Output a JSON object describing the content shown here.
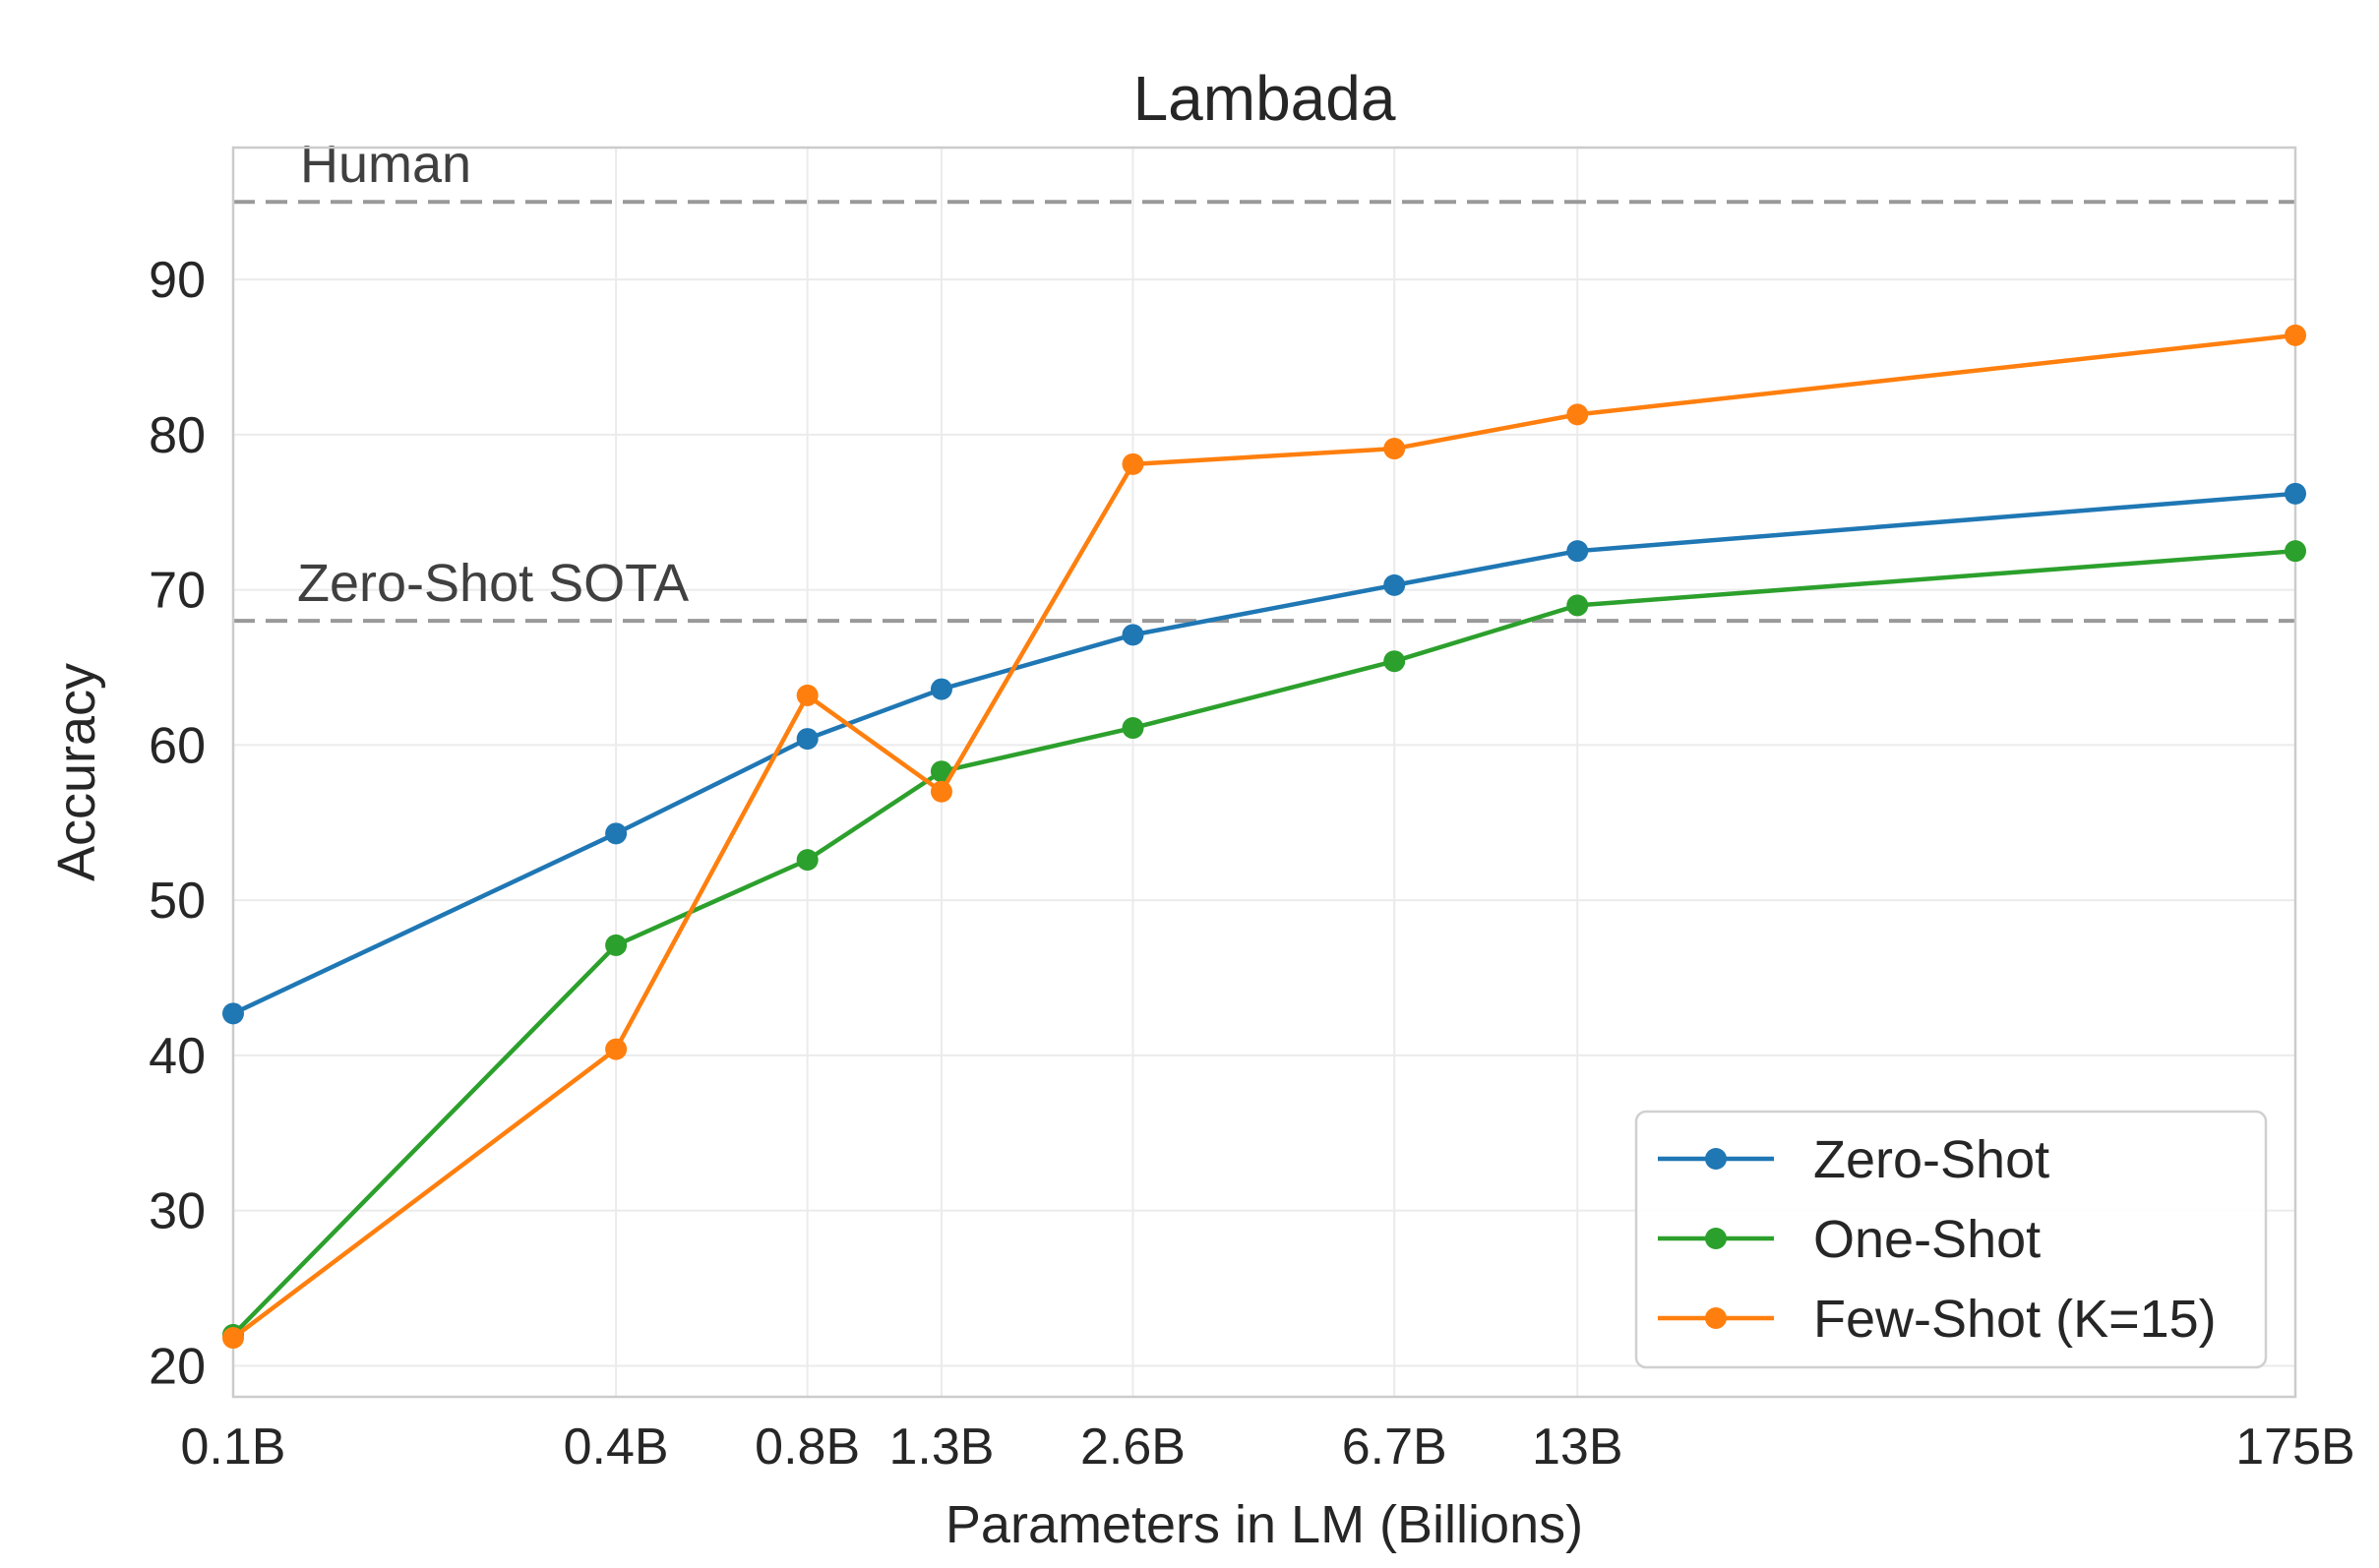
{
  "chart_data": {
    "type": "line",
    "title": "Lambada",
    "xlabel": "Parameters in LM (Billions)",
    "ylabel": "Accuracy",
    "x_scale": "log",
    "x": [
      0.1,
      0.4,
      0.8,
      1.3,
      2.6,
      6.7,
      13,
      175
    ],
    "x_tick_labels": [
      "0.1B",
      "0.4B",
      "0.8B",
      "1.3B",
      "2.6B",
      "6.7B",
      "13B",
      "175B"
    ],
    "ylim": [
      18,
      98.5
    ],
    "y_ticks": [
      20,
      30,
      40,
      50,
      60,
      70,
      80,
      90
    ],
    "grid": true,
    "legend_position": "bottom-right",
    "series": [
      {
        "name": "Zero-Shot",
        "color": "#1f77b4",
        "values": [
          42.7,
          54.3,
          60.4,
          63.6,
          67.1,
          70.3,
          72.5,
          76.2
        ]
      },
      {
        "name": "One-Shot",
        "color": "#2ca02c",
        "values": [
          22.0,
          47.1,
          52.6,
          58.3,
          61.1,
          65.4,
          69.0,
          72.5
        ]
      },
      {
        "name": "Few-Shot (K=15)",
        "color": "#ff7f0e",
        "values": [
          21.8,
          40.4,
          63.2,
          57.0,
          78.1,
          79.1,
          81.3,
          86.4
        ]
      }
    ],
    "reference_lines": [
      {
        "label": "Human",
        "y": 95.0,
        "color": "#999999"
      },
      {
        "label": "Zero-Shot SOTA",
        "y": 68.0,
        "color": "#999999"
      }
    ]
  }
}
